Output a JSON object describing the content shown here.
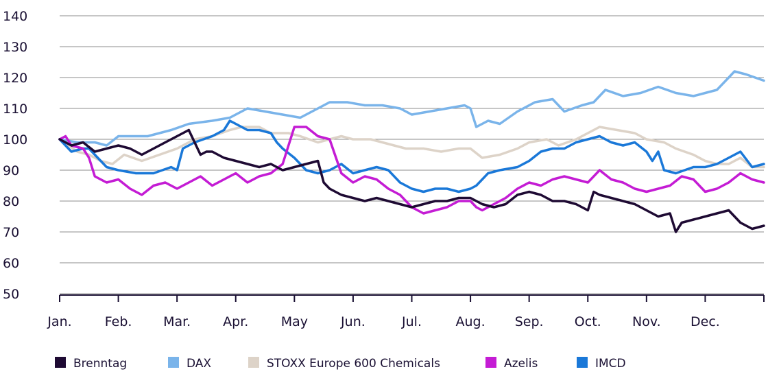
{
  "chart_data": {
    "type": "line",
    "title": "",
    "xlabel": "",
    "ylabel": "",
    "ylim": [
      50,
      140
    ],
    "yticks": [
      50,
      60,
      70,
      80,
      90,
      100,
      110,
      120,
      130,
      140
    ],
    "grid": true,
    "legend_position": "bottom",
    "categories": [
      "Jan.",
      "Feb.",
      "Mar.",
      "Apr.",
      "May",
      "Jun.",
      "Jul.",
      "Aug.",
      "Sep.",
      "Oct.",
      "Nov.",
      "Dec."
    ],
    "x_range": [
      0,
      12
    ],
    "series": [
      {
        "name": "DAX",
        "color": "#7ab4ea",
        "x": [
          0,
          0.3,
          0.6,
          0.8,
          1.0,
          1.5,
          1.9,
          2.2,
          2.6,
          2.9,
          3.2,
          3.5,
          3.8,
          4.1,
          4.4,
          4.6,
          4.9,
          5.2,
          5.5,
          5.8,
          6.0,
          6.3,
          6.6,
          6.9,
          7.0,
          7.1,
          7.3,
          7.5,
          7.8,
          8.1,
          8.4,
          8.6,
          8.9,
          9.1,
          9.3,
          9.6,
          9.9,
          10.2,
          10.5,
          10.8,
          11.0,
          11.2,
          11.4,
          11.5,
          11.7,
          12.0
        ],
        "values": [
          100,
          99,
          99,
          98,
          101,
          101,
          103,
          105,
          106,
          107,
          110,
          109,
          108,
          107,
          110,
          112,
          112,
          111,
          111,
          110,
          108,
          109,
          110,
          111,
          110,
          104,
          106,
          105,
          109,
          112,
          113,
          109,
          111,
          112,
          116,
          114,
          115,
          117,
          115,
          114,
          115,
          116,
          120,
          122,
          121,
          119
        ]
      },
      {
        "name": "STOXX Europe 600 Chemicals",
        "color": "#ddd3c8",
        "x": [
          0,
          0.3,
          0.5,
          0.7,
          0.9,
          1.1,
          1.4,
          1.7,
          2.0,
          2.3,
          2.6,
          2.9,
          3.1,
          3.4,
          3.6,
          3.9,
          4.1,
          4.4,
          4.6,
          4.8,
          5.0,
          5.3,
          5.5,
          5.7,
          5.9,
          6.2,
          6.5,
          6.8,
          7.0,
          7.2,
          7.5,
          7.8,
          8.0,
          8.3,
          8.5,
          8.8,
          9.0,
          9.2,
          9.5,
          9.8,
          10.0,
          10.3,
          10.5,
          10.8,
          11.0,
          11.2,
          11.4,
          11.6,
          11.8,
          12.0
        ],
        "values": [
          100,
          96,
          95,
          93,
          92,
          95,
          93,
          95,
          97,
          100,
          101,
          103,
          104,
          104,
          102,
          102,
          101,
          99,
          100,
          101,
          100,
          100,
          99,
          98,
          97,
          97,
          96,
          97,
          97,
          94,
          95,
          97,
          99,
          100,
          98,
          100,
          102,
          104,
          103,
          102,
          100,
          99,
          97,
          95,
          93,
          92,
          92,
          94,
          91,
          91
        ]
      },
      {
        "name": "IMCD",
        "color": "#1a78d8",
        "x": [
          0,
          0.2,
          0.4,
          0.5,
          0.6,
          0.8,
          1.0,
          1.3,
          1.6,
          1.9,
          2.0,
          2.1,
          2.3,
          2.6,
          2.8,
          2.9,
          3.0,
          3.2,
          3.4,
          3.6,
          3.7,
          3.8,
          4.0,
          4.2,
          4.4,
          4.6,
          4.8,
          5.0,
          5.2,
          5.4,
          5.6,
          5.8,
          6.0,
          6.2,
          6.4,
          6.6,
          6.8,
          7.0,
          7.1,
          7.3,
          7.5,
          7.8,
          8.0,
          8.2,
          8.4,
          8.6,
          8.8,
          9.0,
          9.2,
          9.4,
          9.6,
          9.8,
          10.0,
          10.1,
          10.2,
          10.3,
          10.5,
          10.8,
          11.0,
          11.2,
          11.4,
          11.6,
          11.8,
          12.0
        ],
        "values": [
          100,
          96,
          97,
          97,
          95,
          91,
          90,
          89,
          89,
          91,
          90,
          97,
          99,
          101,
          103,
          106,
          105,
          103,
          103,
          102,
          99,
          97,
          94,
          90,
          89,
          90,
          92,
          89,
          90,
          91,
          90,
          86,
          84,
          83,
          84,
          84,
          83,
          84,
          85,
          89,
          90,
          91,
          93,
          96,
          97,
          97,
          99,
          100,
          101,
          99,
          98,
          99,
          96,
          93,
          96,
          90,
          89,
          91,
          91,
          92,
          94,
          96,
          91,
          92
        ]
      },
      {
        "name": "Azelis",
        "color": "#c41cd4",
        "x": [
          0,
          0.1,
          0.2,
          0.4,
          0.5,
          0.6,
          0.8,
          1.0,
          1.2,
          1.4,
          1.6,
          1.8,
          2.0,
          2.2,
          2.4,
          2.6,
          2.8,
          3.0,
          3.2,
          3.4,
          3.6,
          3.8,
          4.0,
          4.2,
          4.4,
          4.6,
          4.8,
          5.0,
          5.2,
          5.4,
          5.6,
          5.8,
          6.0,
          6.2,
          6.4,
          6.6,
          6.8,
          7.0,
          7.1,
          7.2,
          7.4,
          7.6,
          7.8,
          8.0,
          8.2,
          8.4,
          8.6,
          8.8,
          9.0,
          9.2,
          9.4,
          9.6,
          9.8,
          10.0,
          10.2,
          10.4,
          10.6,
          10.8,
          11.0,
          11.2,
          11.4,
          11.6,
          11.8,
          12.0
        ],
        "values": [
          100,
          101,
          98,
          97,
          94,
          88,
          86,
          87,
          84,
          82,
          85,
          86,
          84,
          86,
          88,
          85,
          87,
          89,
          86,
          88,
          89,
          92,
          104,
          104,
          101,
          100,
          89,
          86,
          88,
          87,
          84,
          82,
          78,
          76,
          77,
          78,
          80,
          80,
          78,
          77,
          79,
          81,
          84,
          86,
          85,
          87,
          88,
          87,
          86,
          90,
          87,
          86,
          84,
          83,
          84,
          85,
          88,
          87,
          83,
          84,
          86,
          89,
          87,
          86
        ]
      },
      {
        "name": "Brenntag",
        "color": "#1e0a33",
        "x": [
          0,
          0.2,
          0.4,
          0.6,
          0.8,
          1.0,
          1.2,
          1.4,
          1.6,
          1.8,
          2.0,
          2.2,
          2.4,
          2.5,
          2.6,
          2.8,
          3.0,
          3.2,
          3.4,
          3.6,
          3.8,
          4.0,
          4.2,
          4.4,
          4.5,
          4.6,
          4.8,
          5.0,
          5.2,
          5.4,
          5.6,
          5.8,
          6.0,
          6.2,
          6.4,
          6.6,
          6.8,
          7.0,
          7.2,
          7.4,
          7.6,
          7.8,
          8.0,
          8.2,
          8.4,
          8.6,
          8.8,
          9.0,
          9.1,
          9.2,
          9.4,
          9.6,
          9.8,
          10.0,
          10.2,
          10.4,
          10.5,
          10.6,
          10.8,
          11.0,
          11.2,
          11.4,
          11.6,
          11.8,
          12.0
        ],
        "values": [
          100,
          98,
          99,
          96,
          97,
          98,
          97,
          95,
          97,
          99,
          101,
          103,
          95,
          96,
          96,
          94,
          93,
          92,
          91,
          92,
          90,
          91,
          92,
          93,
          86,
          84,
          82,
          81,
          80,
          81,
          80,
          79,
          78,
          79,
          80,
          80,
          81,
          81,
          79,
          78,
          79,
          82,
          83,
          82,
          80,
          80,
          79,
          77,
          83,
          82,
          81,
          80,
          79,
          77,
          75,
          76,
          70,
          73,
          74,
          75,
          76,
          77,
          73,
          71,
          72
        ]
      }
    ],
    "legend": [
      {
        "name": "Brenntag",
        "color": "#1e0a33"
      },
      {
        "name": "DAX",
        "color": "#7ab4ea"
      },
      {
        "name": "STOXX Europe 600 Chemicals",
        "color": "#ddd3c8"
      },
      {
        "name": "Azelis",
        "color": "#c41cd4"
      },
      {
        "name": "IMCD",
        "color": "#1a78d8"
      }
    ]
  }
}
